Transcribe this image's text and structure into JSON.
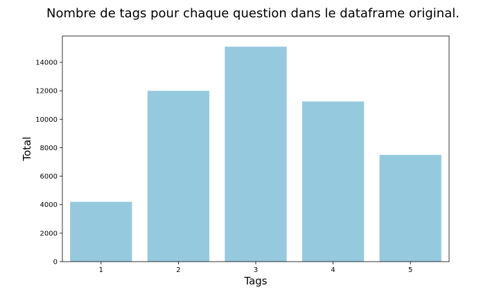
{
  "chart_data": {
    "type": "bar",
    "title": "Nombre de tags pour chaque question dans le dataframe original.",
    "xlabel": "Tags",
    "ylabel": "Total",
    "categories": [
      "1",
      "2",
      "3",
      "4",
      "5"
    ],
    "values": [
      4200,
      12000,
      15100,
      11250,
      7500
    ],
    "ylim": [
      0,
      15850
    ],
    "yticks": [
      0,
      2000,
      4000,
      6000,
      8000,
      10000,
      12000,
      14000
    ],
    "grid": false,
    "bar_color": "#95c9de"
  }
}
